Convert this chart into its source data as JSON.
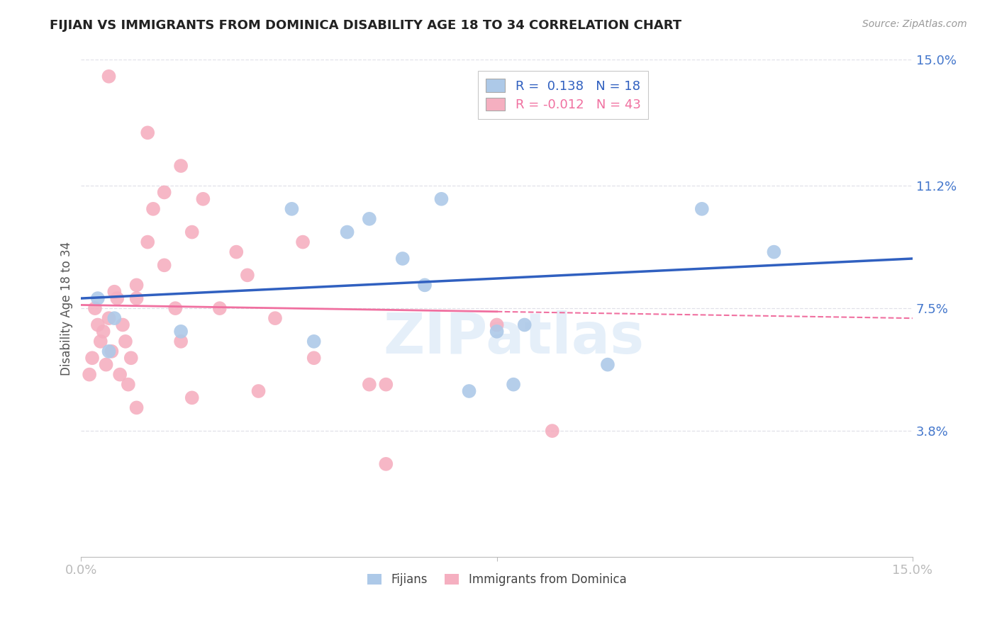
{
  "title": "FIJIAN VS IMMIGRANTS FROM DOMINICA DISABILITY AGE 18 TO 34 CORRELATION CHART",
  "source_text": "Source: ZipAtlas.com",
  "ylabel": "Disability Age 18 to 34",
  "xlabel": "",
  "xlim": [
    0.0,
    15.0
  ],
  "ylim": [
    0.0,
    15.0
  ],
  "y_ticks_right": [
    3.8,
    7.5,
    11.2,
    15.0
  ],
  "y_tick_labels_right": [
    "3.8%",
    "7.5%",
    "11.2%",
    "15.0%"
  ],
  "fijian_R": 0.138,
  "fijian_N": 18,
  "dominica_R": -0.012,
  "dominica_N": 43,
  "fijian_color": "#adc9e8",
  "dominica_color": "#f5afc0",
  "fijian_line_color": "#3060c0",
  "dominica_line_color": "#f070a0",
  "background_color": "#ffffff",
  "grid_color": "#e0e0e8",
  "title_color": "#222222",
  "axis_label_color": "#4477cc",
  "watermark": "ZIPatlas",
  "legend_label1": "R =  0.138   N = 18",
  "legend_label2": "R = -0.012   N = 43",
  "bottom_legend1": "Fijians",
  "bottom_legend2": "Immigrants from Dominica",
  "fijian_x": [
    0.3,
    0.6,
    1.8,
    3.8,
    4.8,
    5.2,
    5.8,
    6.2,
    6.5,
    7.5,
    7.8,
    8.0,
    9.5,
    11.2,
    12.5,
    0.5,
    4.2,
    7.0
  ],
  "fijian_y": [
    7.8,
    7.2,
    6.8,
    10.5,
    9.8,
    10.2,
    9.0,
    8.2,
    10.8,
    6.8,
    5.2,
    7.0,
    5.8,
    10.5,
    9.2,
    6.2,
    6.5,
    5.0
  ],
  "dominica_x": [
    0.15,
    0.2,
    0.25,
    0.3,
    0.35,
    0.4,
    0.45,
    0.5,
    0.55,
    0.6,
    0.65,
    0.7,
    0.75,
    0.8,
    0.85,
    0.9,
    1.0,
    1.0,
    1.2,
    1.3,
    1.5,
    1.5,
    1.7,
    1.8,
    2.0,
    2.2,
    2.5,
    3.0,
    3.5,
    4.2,
    5.2,
    7.5,
    0.5,
    1.2,
    1.8,
    2.8,
    4.0,
    1.0,
    2.0,
    3.2,
    5.5,
    5.5,
    8.5
  ],
  "dominica_y": [
    5.5,
    6.0,
    7.5,
    7.0,
    6.5,
    6.8,
    5.8,
    7.2,
    6.2,
    8.0,
    7.8,
    5.5,
    7.0,
    6.5,
    5.2,
    6.0,
    8.2,
    7.8,
    9.5,
    10.5,
    11.0,
    8.8,
    7.5,
    6.5,
    9.8,
    10.8,
    7.5,
    8.5,
    7.2,
    6.0,
    5.2,
    7.0,
    14.5,
    12.8,
    11.8,
    9.2,
    9.5,
    4.5,
    4.8,
    5.0,
    2.8,
    5.2,
    3.8
  ],
  "fijian_line_start_y": 7.8,
  "fijian_line_end_y": 9.0,
  "dominica_line_start_y": 7.6,
  "dominica_line_end_y": 7.2,
  "dominica_line_solid_end_x": 7.5
}
